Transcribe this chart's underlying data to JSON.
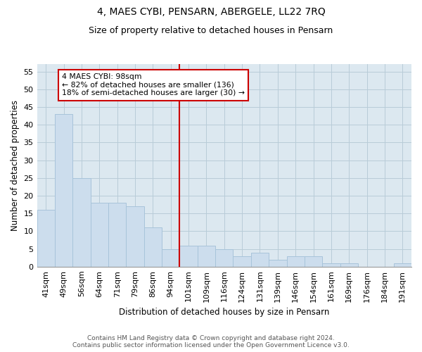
{
  "title": "4, MAES CYBI, PENSARN, ABERGELE, LL22 7RQ",
  "subtitle": "Size of property relative to detached houses in Pensarn",
  "xlabel": "Distribution of detached houses by size in Pensarn",
  "ylabel": "Number of detached properties",
  "categories": [
    "41sqm",
    "49sqm",
    "56sqm",
    "64sqm",
    "71sqm",
    "79sqm",
    "86sqm",
    "94sqm",
    "101sqm",
    "109sqm",
    "116sqm",
    "124sqm",
    "131sqm",
    "139sqm",
    "146sqm",
    "154sqm",
    "161sqm",
    "169sqm",
    "176sqm",
    "184sqm",
    "191sqm"
  ],
  "values": [
    16,
    43,
    25,
    18,
    18,
    17,
    11,
    5,
    6,
    6,
    5,
    3,
    4,
    2,
    3,
    3,
    1,
    1,
    0,
    0,
    1
  ],
  "bar_color": "#ccdded",
  "bar_edge_color": "#a8c4da",
  "vline_color": "#cc0000",
  "vline_x": 8,
  "annotation_text": "4 MAES CYBI: 98sqm\n← 82% of detached houses are smaller (136)\n18% of semi-detached houses are larger (30) →",
  "annotation_box_facecolor": "#ffffff",
  "annotation_box_edgecolor": "#cc0000",
  "ylim": [
    0,
    57
  ],
  "yticks": [
    0,
    5,
    10,
    15,
    20,
    25,
    30,
    35,
    40,
    45,
    50,
    55
  ],
  "grid_color": "#b8ccd8",
  "background_color": "#dce8f0",
  "footer_text": "Contains HM Land Registry data © Crown copyright and database right 2024.\nContains public sector information licensed under the Open Government Licence v3.0.",
  "title_fontsize": 10,
  "subtitle_fontsize": 9,
  "xlabel_fontsize": 8.5,
  "ylabel_fontsize": 8.5,
  "tick_fontsize": 8,
  "annot_fontsize": 7.8,
  "footer_fontsize": 6.5
}
